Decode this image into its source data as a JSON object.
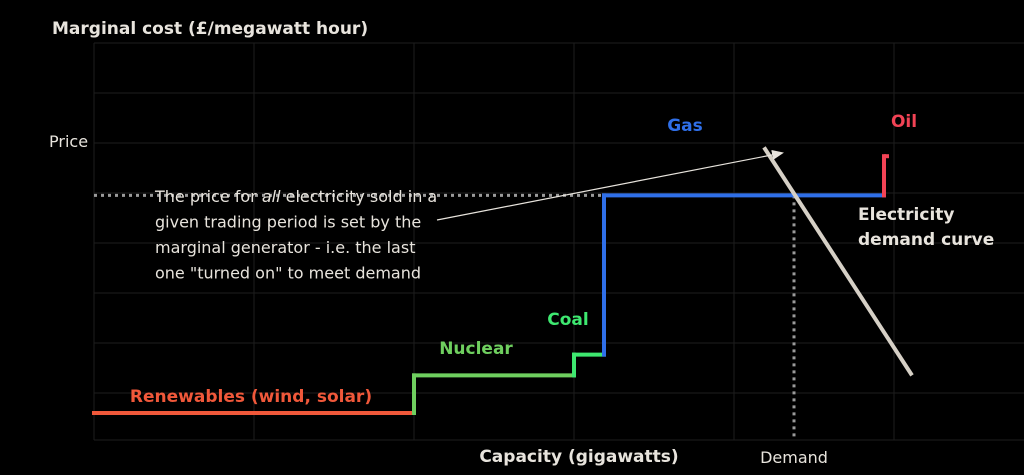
{
  "chart_data": {
    "type": "line",
    "title": "",
    "ylabel": "Marginal cost (£/megawatt hour)",
    "xlabel": "Capacity (gigawatts)",
    "grid": true,
    "xlim": [
      0,
      930
    ],
    "ylim": [
      0,
      400
    ],
    "price_label": "Price",
    "demand_label": "Demand",
    "supply_curve": {
      "x": [
        0,
        320,
        320,
        480,
        480,
        510,
        510,
        790,
        790
      ],
      "y": [
        0,
        0,
        47,
        47,
        73,
        73,
        272,
        272,
        321
      ]
    },
    "segments": [
      {
        "name": "Renewables (wind, solar)",
        "x_start": 0,
        "x_end": 320,
        "y": 0,
        "color": "#f0583a"
      },
      {
        "name": "Nuclear",
        "x_start": 320,
        "x_end": 480,
        "y": 47,
        "color": "#6fcf5f"
      },
      {
        "name": "Coal",
        "x_start": 480,
        "x_end": 510,
        "y": 73,
        "color": "#3ee870"
      },
      {
        "name": "Gas",
        "x_start": 510,
        "x_end": 790,
        "y": 272,
        "color": "#2f6fe8"
      },
      {
        "name": "Oil",
        "x_start": 790,
        "x_end": 790,
        "y": 321,
        "color": "#f24355"
      }
    ],
    "demand_curve": {
      "label": [
        "Electricity",
        "demand curve"
      ],
      "x": [
        670,
        818
      ],
      "y": [
        332,
        47
      ],
      "color": "#d6d0c6"
    },
    "equilibrium": {
      "x": 700,
      "y": 272
    },
    "annotation": {
      "lines": [
        [
          "The price for ",
          "all",
          " electricity sold in a"
        ],
        [
          "given trading period is set by the"
        ],
        [
          "marginal generator - i.e. the last"
        ],
        [
          "one \"turned on\" to meet demand"
        ]
      ]
    }
  }
}
